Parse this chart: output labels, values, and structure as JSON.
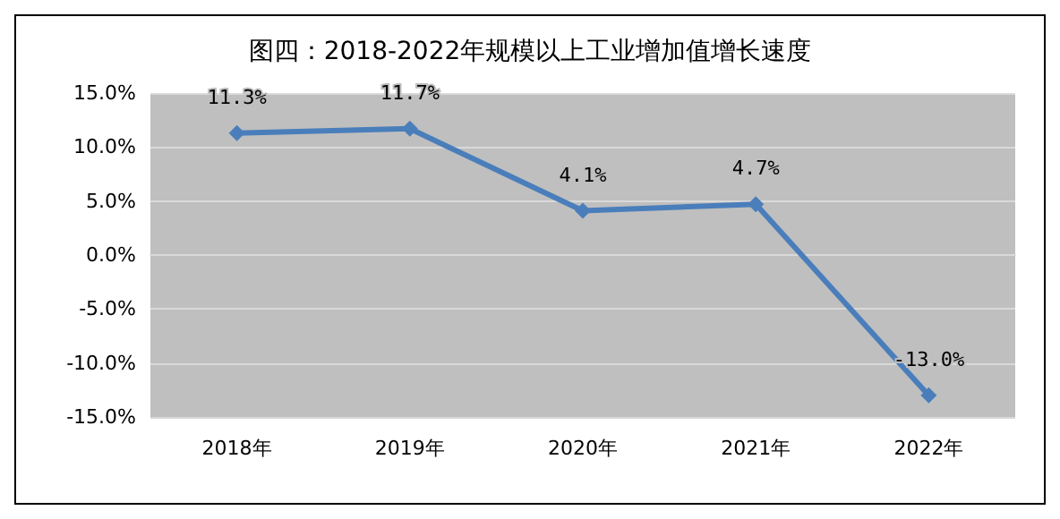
{
  "chart_data": {
    "type": "line",
    "title": "图四：2018-2022年规模以上工业增加值增长速度",
    "categories": [
      "2018年",
      "2019年",
      "2020年",
      "2021年",
      "2022年"
    ],
    "series": [
      {
        "color": "#4a7ebb",
        "values": [
          11.3,
          11.7,
          4.1,
          4.7,
          -13.0
        ],
        "value_labels": [
          "11.3%",
          "11.7%",
          "4.1%",
          "4.7%",
          "-13.0%"
        ]
      }
    ],
    "ylim": [
      -15,
      15
    ],
    "yticks": [
      {
        "value": -15,
        "label": "-15.0%"
      },
      {
        "value": -10,
        "label": "-10.0%"
      },
      {
        "value": -5,
        "label": "-5.0%"
      },
      {
        "value": 0,
        "label": "0.0%"
      },
      {
        "value": 5,
        "label": "5.0%"
      },
      {
        "value": 10,
        "label": "10.0%"
      },
      {
        "value": 15,
        "label": "15.0%"
      }
    ],
    "grid": "y",
    "marker": "diamond",
    "line_style": "solid"
  }
}
